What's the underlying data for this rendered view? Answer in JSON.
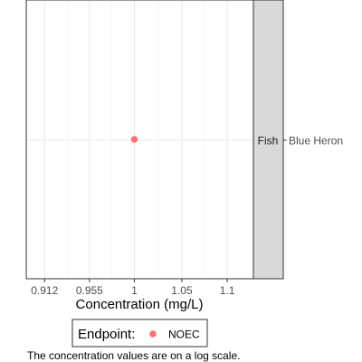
{
  "chart_data": {
    "type": "scatter",
    "log_x": true,
    "xlabel": "Concentration (mg/L)",
    "x_ticks": [
      0.912,
      0.955,
      1,
      1.05,
      1.1
    ],
    "x_tick_labels": [
      "0.912",
      "0.955",
      "1",
      "1.05",
      "1.1"
    ],
    "xlim": [
      0.895,
      1.13
    ],
    "y_categories": [
      "Blue Heron"
    ],
    "facet_label": "Fish",
    "grid": true,
    "series": [
      {
        "name": "NOEC",
        "color": "#F8766D",
        "points": [
          {
            "x": 1,
            "y": "Blue Heron"
          }
        ]
      }
    ],
    "legend": {
      "title": "Endpoint:",
      "position": "bottom"
    },
    "caption": "The concentration values are on a log scale."
  }
}
